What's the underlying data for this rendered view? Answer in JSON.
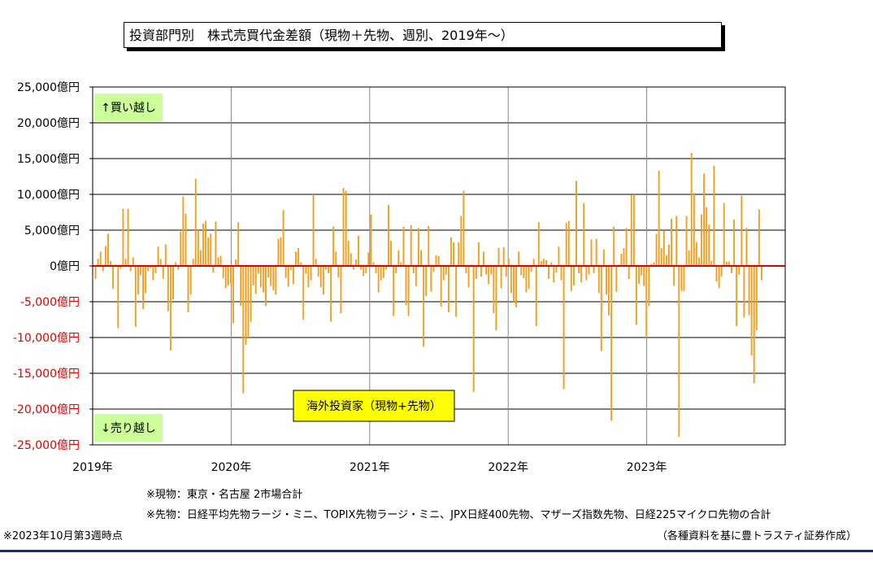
{
  "title": "投資部門別　株式売買代金差額（現物＋先物、週別、2019年～）",
  "chart_data": {
    "type": "bar",
    "ylim": [
      -25000,
      25000
    ],
    "yticks": [
      "25,000億円",
      "20,000億円",
      "15,000億円",
      "10,000億円",
      "5,000億円",
      "0億円",
      "-5,000億円",
      "-10,000億円",
      "-15,000億円",
      "-20,000億円",
      "-25,000億円"
    ],
    "ytick_values": [
      25000,
      20000,
      15000,
      10000,
      5000,
      0,
      -5000,
      -10000,
      -15000,
      -20000,
      -25000
    ],
    "xticks": [
      "2019年",
      "2020年",
      "2021年",
      "2022年",
      "2023年"
    ],
    "grid": true,
    "bar_color": "#f0a020",
    "zero_line_color": "#e00000",
    "negative_tick_color": "#e00000",
    "annotations": {
      "buy": "↑買い越し",
      "sell": "↓売り越し",
      "series_label": "海外投資家（現物+先物）"
    },
    "annotation_colors": {
      "buy_sell_bg": "#ccff99",
      "series_label_bg": "#ffff00"
    },
    "values": [
      -1800,
      1000,
      2000,
      -700,
      2800,
      4500,
      700,
      -3200,
      200,
      -8700,
      -400,
      8000,
      1000,
      8000,
      -700,
      1200,
      -8500,
      -4000,
      -1300,
      -6000,
      -3800,
      -700,
      -300,
      -2000,
      -1000,
      2700,
      1000,
      -1800,
      3000,
      -6300,
      -11800,
      -4700,
      500,
      -500,
      4800,
      9700,
      7300,
      -6500,
      -4000,
      1000,
      12200,
      5000,
      2200,
      5900,
      6300,
      4000,
      4500,
      -900,
      6200,
      1200,
      1400,
      -1700,
      -3100,
      -2700,
      -2500,
      -8000,
      900,
      6100,
      -5600,
      -17800,
      -11000,
      -10000,
      -7800,
      -2700,
      -3900,
      -1100,
      -3000,
      -3700,
      -5600,
      -1600,
      -2800,
      -3400,
      -4000,
      3800,
      4000,
      7800,
      -1700,
      -2900,
      -600,
      -2500,
      2000,
      2500,
      500,
      -7500,
      -1100,
      -3000,
      -2000,
      10000,
      1000,
      -1500,
      -3000,
      -4000,
      -500,
      -1000,
      -7800,
      5500,
      2000,
      -1600,
      -6600,
      10900,
      10500,
      3500,
      1800,
      -500,
      900,
      4200,
      -500,
      -1400,
      -1000,
      1900,
      7200,
      500,
      -1000,
      -3700,
      -2000,
      -1700,
      -500,
      8500,
      3500,
      -7000,
      -1000,
      2200,
      500,
      5500,
      -5500,
      -7000,
      5700,
      -1000,
      -2800,
      5300,
      2200,
      -11300,
      -4200,
      5600,
      -3600,
      -800,
      1500,
      1400,
      -5700,
      -2000,
      -1200,
      -6500,
      4000,
      3300,
      -7100,
      3300,
      7000,
      10500,
      -1000,
      -3000,
      200,
      -17600,
      -1800,
      3300,
      -1500,
      2000,
      -1200,
      -2500,
      -1200,
      -6600,
      -9000,
      2500,
      -3100,
      2600,
      -1500,
      1000,
      -3800,
      -5000,
      -5800,
      2000,
      -1300,
      -1700,
      -3700,
      -3200,
      -800,
      1000,
      -8400,
      6100,
      700,
      1000,
      800,
      -1800,
      500,
      -2300,
      -900,
      2700,
      -2000,
      -17200,
      6000,
      6300,
      -3500,
      -2700,
      11900,
      -1000,
      -2300,
      8800,
      -2000,
      -1200,
      3700,
      -1000,
      3800,
      -3800,
      -11900,
      2300,
      -4000,
      -6900,
      -21600,
      5500,
      -3600,
      200,
      1700,
      2500,
      5300,
      -1800,
      9900,
      10000,
      -8200,
      -2500,
      -1300,
      -2800,
      -10000,
      -5600,
      300,
      500,
      4500,
      13300,
      2500,
      4900,
      1500,
      3000,
      6600,
      -2800,
      7000,
      -23900,
      -3500,
      -3500,
      7000,
      2200,
      15800,
      10200,
      3300,
      1200,
      7200,
      12900,
      8200,
      5800,
      700,
      14000,
      -2200,
      -3100,
      -1500,
      8800,
      600,
      600,
      -1000,
      6500,
      -8400,
      -1200,
      9800,
      -7200,
      5300,
      -6900,
      -12500,
      -16400,
      -9000,
      7900,
      -2000
    ]
  },
  "notes": {
    "spot": "※現物：東京・名古屋 2市場合計",
    "futures": "※先物：日経平均先物ラージ・ミニ、TOPIX先物ラージ・ミニ、JPX日経400先物、マザーズ指数先物、日経225マイクロ先物の合計",
    "as_of": "※2023年10月第3週時点",
    "source": "（各種資料を基に豊トラスティ証券作成）"
  }
}
